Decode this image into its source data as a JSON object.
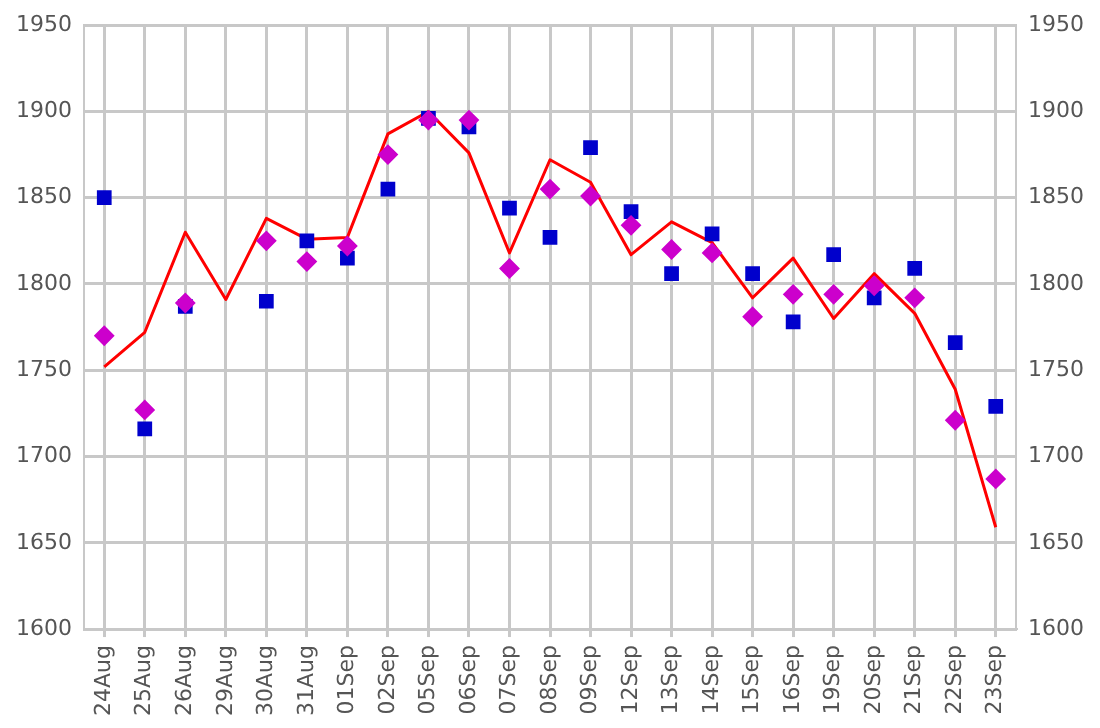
{
  "chart_data": {
    "type": "line",
    "categories": [
      "24Aug",
      "25Aug",
      "26Aug",
      "29Aug",
      "30Aug",
      "31Aug",
      "01Sep",
      "02Sep",
      "05Sep",
      "06Sep",
      "07Sep",
      "08Sep",
      "09Sep",
      "12Sep",
      "13Sep",
      "14Sep",
      "15Sep",
      "16Sep",
      "19Sep",
      "20Sep",
      "21Sep",
      "22Sep",
      "23Sep"
    ],
    "series": [
      {
        "color": "#ff0000",
        "marker": "none",
        "values": [
          1752,
          1772,
          1830,
          1791,
          1838,
          1826,
          1827,
          1887,
          1900,
          1876,
          1818,
          1872,
          1859,
          1817,
          1836,
          1824,
          1792,
          1815,
          1780,
          1806,
          1783,
          1739,
          1659
        ]
      },
      {
        "type": "scatter",
        "color": "#0000cc",
        "marker": "square",
        "values": [
          1850,
          1716,
          1787,
          null,
          1790,
          1825,
          1815,
          1855,
          1896,
          1891,
          1844,
          1827,
          1879,
          1842,
          1806,
          1829,
          1806,
          1778,
          1817,
          1792,
          1809,
          1766,
          1729
        ]
      },
      {
        "type": "scatter",
        "color": "#cc00cc",
        "marker": "diamond",
        "values": [
          1770,
          1727,
          1789,
          null,
          1825,
          1813,
          1822,
          1875,
          1895,
          1895,
          1809,
          1855,
          1851,
          1834,
          1820,
          1818,
          1781,
          1794,
          1794,
          1799,
          1792,
          1721,
          1687
        ]
      }
    ],
    "ylim": [
      1600,
      1950
    ],
    "yticks": [
      1600,
      1650,
      1700,
      1750,
      1800,
      1850,
      1900,
      1950
    ],
    "y2lim": [
      1600,
      1950
    ],
    "y2ticks": [
      1600,
      1650,
      1700,
      1750,
      1800,
      1850,
      1900,
      1950
    ],
    "grid": true,
    "legend": false
  }
}
